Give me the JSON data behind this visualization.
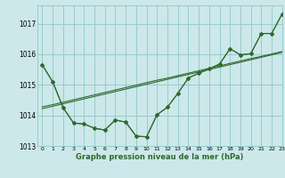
{
  "background_color": "#cce8ea",
  "grid_color": "#99cccc",
  "line_color": "#2d6a2d",
  "xlabel": "Graphe pression niveau de la mer (hPa)",
  "ylim": [
    1013.0,
    1017.6
  ],
  "xlim": [
    -0.5,
    23
  ],
  "yticks": [
    1013,
    1014,
    1015,
    1016,
    1017
  ],
  "xticks": [
    0,
    1,
    2,
    3,
    4,
    5,
    6,
    7,
    8,
    9,
    10,
    11,
    12,
    13,
    14,
    15,
    16,
    17,
    18,
    19,
    20,
    21,
    22,
    23
  ],
  "s1_y": [
    1015.65,
    1015.1,
    1014.25,
    1013.75,
    1013.72,
    1013.58,
    1013.52,
    1013.85,
    1013.78,
    1013.32,
    1013.3,
    1014.02,
    1014.27,
    1014.72,
    1015.22,
    1015.38,
    1015.52,
    1015.68,
    1016.18,
    1015.98,
    1016.02,
    1016.68,
    1016.68,
    1017.32
  ],
  "s2_y": [
    1015.65,
    1015.1,
    1014.25,
    1013.75,
    1013.72,
    1013.58,
    1013.52,
    1013.85,
    1013.78,
    1013.32,
    1013.3,
    1014.02,
    1014.27,
    1014.72,
    1015.22,
    1015.38,
    1015.52,
    1015.68,
    1016.18,
    1015.98,
    1016.02,
    1016.68,
    1016.68,
    1017.32
  ],
  "s3_y": [
    1014.28,
    1014.35,
    1014.43,
    1014.51,
    1014.59,
    1014.67,
    1014.75,
    1014.83,
    1014.91,
    1014.99,
    1015.07,
    1015.15,
    1015.22,
    1015.3,
    1015.38,
    1015.46,
    1015.54,
    1015.62,
    1015.7,
    1015.78,
    1015.86,
    1015.93,
    1016.01,
    1016.09
  ],
  "s4_y": [
    1014.22,
    1014.3,
    1014.38,
    1014.46,
    1014.54,
    1014.62,
    1014.7,
    1014.78,
    1014.86,
    1014.94,
    1015.02,
    1015.1,
    1015.18,
    1015.26,
    1015.34,
    1015.42,
    1015.5,
    1015.58,
    1015.66,
    1015.74,
    1015.82,
    1015.9,
    1015.98,
    1016.06
  ]
}
